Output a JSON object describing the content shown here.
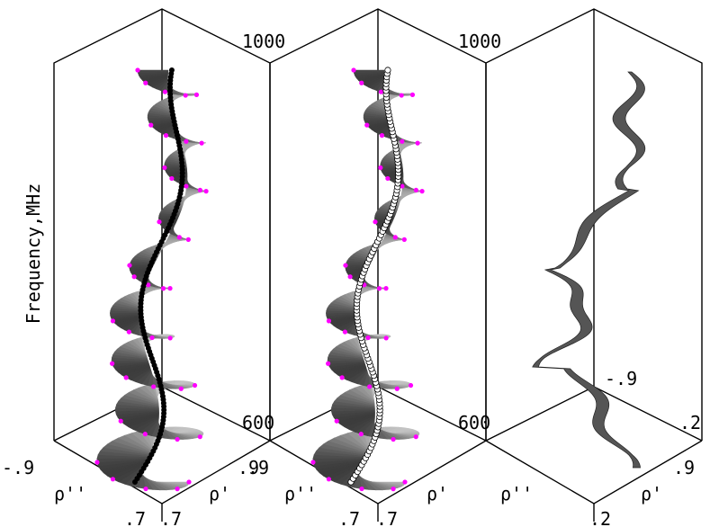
{
  "chart_data": {
    "type": "scatter",
    "projection": "3d",
    "ylabel": "Frequency,MHz",
    "grid": false,
    "legend": "none",
    "panels": [
      {
        "z_top_label": "1000",
        "z_bottom_label": "600",
        "x_axis": "ρ'",
        "x_ticks": [
          ".9",
          ".7"
        ],
        "y_axis": "ρ''",
        "y_ticks": [
          "-.9",
          ".7"
        ],
        "colors": {
          "edge_markers": "#ff00ff",
          "locus_points": "#000000",
          "surface": "#888888"
        }
      },
      {
        "z_top_label": "1000",
        "z_bottom_label": "600",
        "x_axis": "ρ'",
        "x_ticks": [
          ".9",
          ".7"
        ],
        "y_axis": "ρ''",
        "y_ticks": [
          ".7"
        ],
        "colors": {
          "edge_markers": "#ff00ff",
          "locus_points": "#ffffff",
          "surface": "#888888"
        }
      },
      {
        "x_axis": "ρ'",
        "x_ticks": [
          ".2",
          ".9"
        ],
        "y_axis": "ρ''",
        "y_ticks": [
          "-.9",
          ".2"
        ],
        "colors": {
          "band": "#555555"
        }
      }
    ]
  }
}
